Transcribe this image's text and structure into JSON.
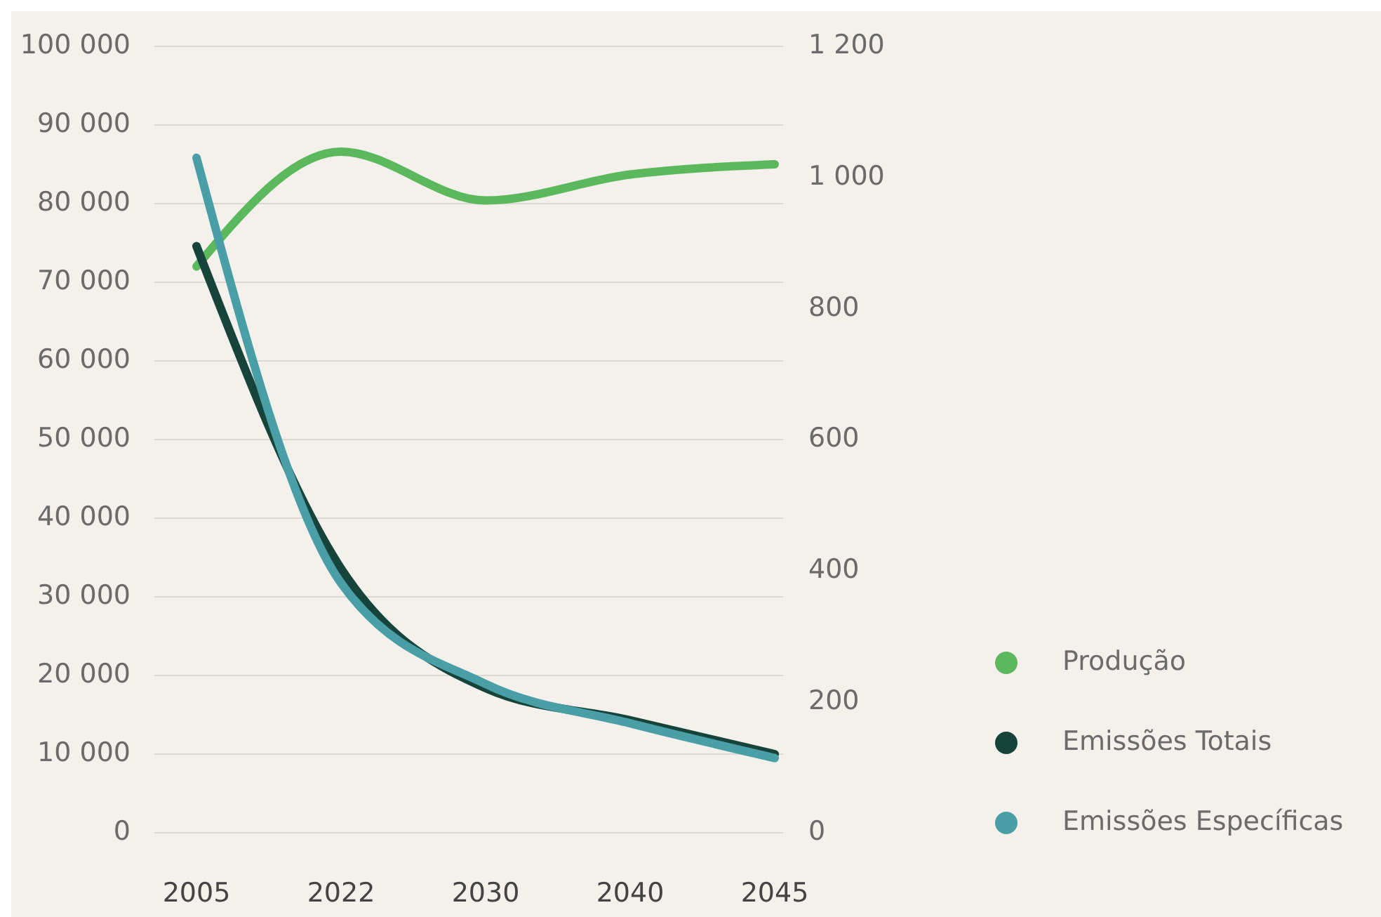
{
  "chart_data": {
    "type": "line",
    "categories": [
      "2005",
      "2022",
      "2030",
      "2040",
      "2045"
    ],
    "ylim": [
      0,
      100000
    ],
    "yticks": [
      {
        "value": 0,
        "label": "0"
      },
      {
        "value": 10000,
        "label": "10 000"
      },
      {
        "value": 20000,
        "label": "20 000"
      },
      {
        "value": 30000,
        "label": "30 000"
      },
      {
        "value": 40000,
        "label": "40 000"
      },
      {
        "value": 50000,
        "label": "50 000"
      },
      {
        "value": 60000,
        "label": "60 000"
      },
      {
        "value": 70000,
        "label": "70 000"
      },
      {
        "value": 80000,
        "label": "80 000"
      },
      {
        "value": 90000,
        "label": "90 000"
      },
      {
        "value": 100000,
        "label": "100 000"
      }
    ],
    "y2lim": [
      0,
      1200
    ],
    "y2ticks": [
      0,
      200,
      400,
      600,
      800,
      {
        "value": 1000,
        "label": "1 000"
      },
      {
        "value": 1200,
        "label": "1 200"
      }
    ],
    "grid": "y",
    "legend": "right",
    "line_style": "solid",
    "series": [
      {
        "name": "Produção",
        "color": "#5cb85c",
        "values": [
          72000,
          86600,
          80400,
          83700,
          85000
        ]
      },
      {
        "name": "Emissões Totais",
        "color": "#17443a",
        "values": [
          74600,
          33600,
          18400,
          14300,
          10000
        ]
      },
      {
        "name": "Emissões Específicas",
        "color": "#4a9ea6",
        "axis": "y2",
        "values": [
          1030,
          381,
          227,
          167,
          114
        ]
      }
    ]
  }
}
